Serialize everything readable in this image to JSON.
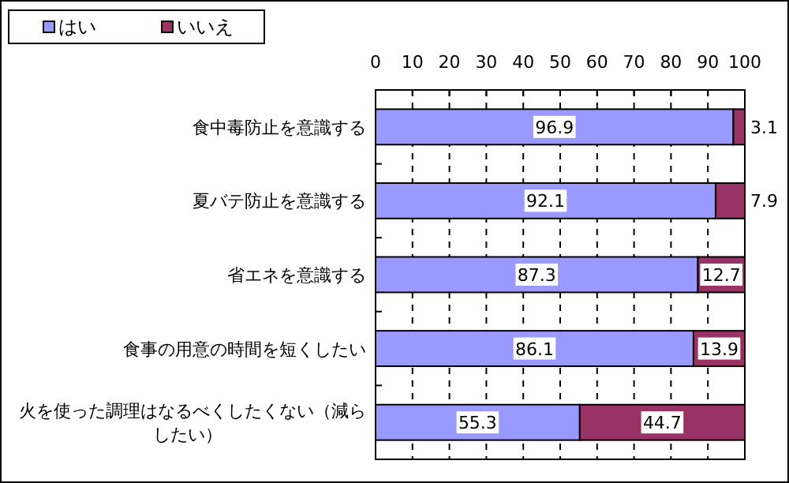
{
  "chart_data": {
    "type": "bar",
    "orientation": "horizontal",
    "stacked": true,
    "categories": [
      "食中毒防止を意識する",
      "夏バテ防止を意識する",
      "省エネを意識する",
      "食事の用意の時間を短くしたい",
      "火を使った調理はなるべくしたくない（減らしたい）"
    ],
    "series": [
      {
        "name": "はい",
        "color": "#9999ff",
        "values": [
          96.9,
          92.1,
          87.3,
          86.1,
          55.3
        ]
      },
      {
        "name": "いいえ",
        "color": "#993366",
        "values": [
          3.1,
          7.9,
          12.7,
          13.9,
          44.7
        ]
      }
    ],
    "xlim": [
      0,
      100
    ],
    "xticks": [
      0,
      10,
      20,
      30,
      40,
      50,
      60,
      70,
      80,
      90,
      100
    ],
    "grid": "x",
    "legend": "top left",
    "data_labels": true
  }
}
